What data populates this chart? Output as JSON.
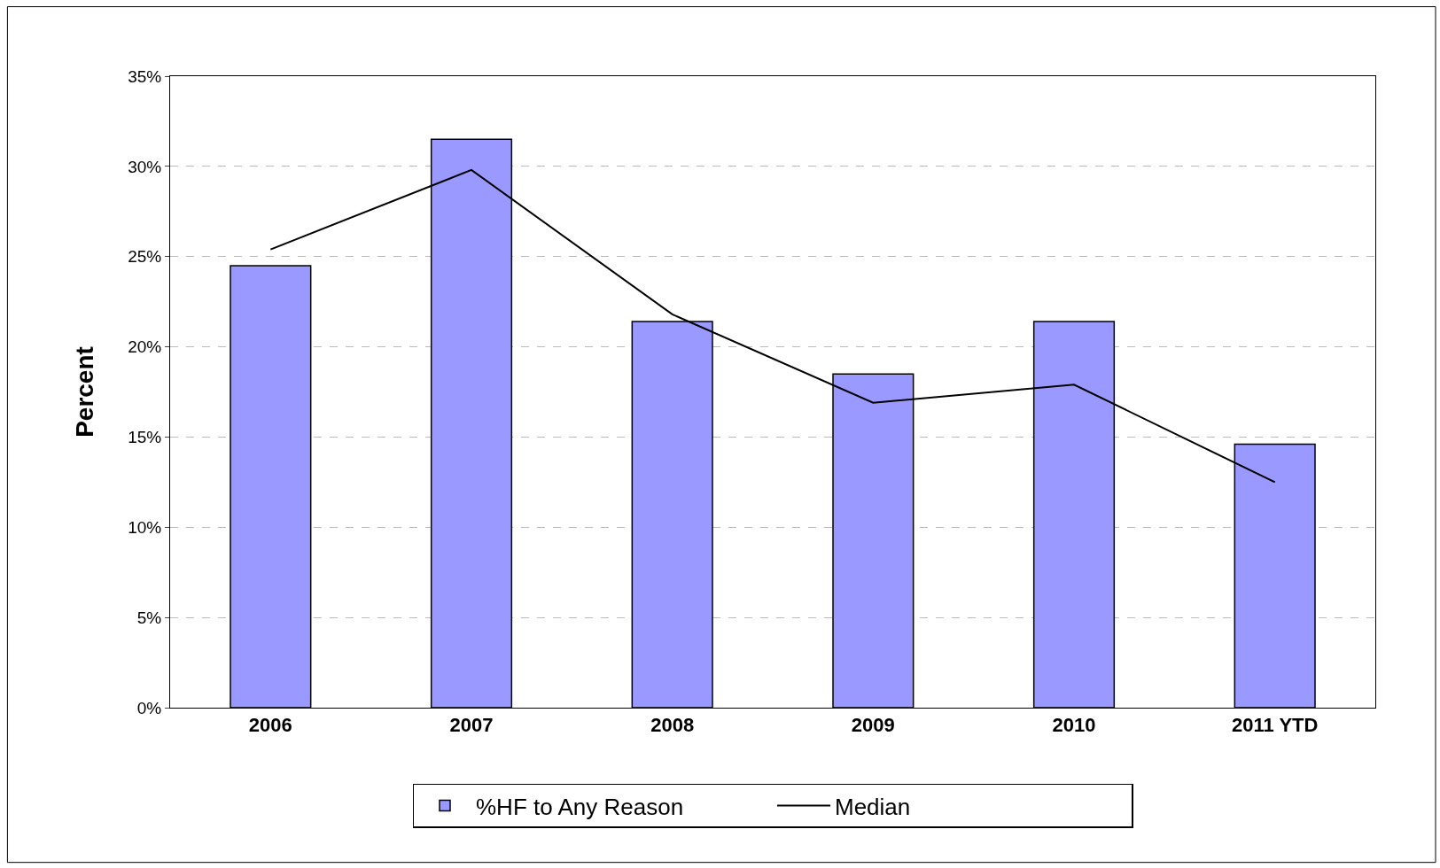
{
  "chart_data": {
    "type": "bar",
    "ylabel": "Percent",
    "categories": [
      "2006",
      "2007",
      "2008",
      "2009",
      "2010",
      "2011 YTD"
    ],
    "series": [
      {
        "name": "%HF to Any Reason",
        "color": "#9999ff",
        "values": [
          24.5,
          31.5,
          21.4,
          18.5,
          21.4,
          14.6
        ]
      },
      {
        "name": "Median",
        "type": "line",
        "color": "#000000",
        "values": [
          25.4,
          29.8,
          21.8,
          16.9,
          17.9,
          12.5
        ]
      }
    ],
    "ylim": [
      0,
      35
    ],
    "yticks": [
      {
        "value": 0,
        "label": "0%"
      },
      {
        "value": 5,
        "label": "5%"
      },
      {
        "value": 10,
        "label": "10%"
      },
      {
        "value": 15,
        "label": "15%"
      },
      {
        "value": 20,
        "label": "20%"
      },
      {
        "value": 25,
        "label": "25%"
      },
      {
        "value": 30,
        "label": "30%"
      },
      {
        "value": 35,
        "label": "35%"
      }
    ],
    "grid": "y",
    "legend": "bottom",
    "marker": "none",
    "line_style": "solid"
  }
}
